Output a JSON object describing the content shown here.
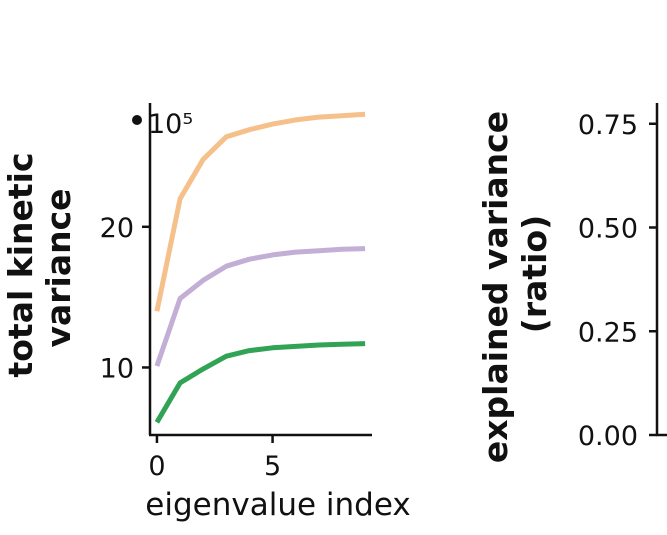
{
  "chart_data": [
    {
      "type": "line",
      "title": "",
      "xlabel": "eigenvalue index",
      "ylabel_lines": [
        "total kinetic",
        "variance"
      ],
      "y_multiplier_label": "10⁵",
      "x": [
        0,
        1,
        2,
        3,
        4,
        5,
        6,
        7,
        8,
        9
      ],
      "xticks": [
        "0",
        "5"
      ],
      "yticks": [
        "10",
        "20"
      ],
      "xlim": [
        -0.3,
        9.3
      ],
      "ylim": [
        5.2,
        28.8
      ],
      "grid": false,
      "series": [
        {
          "color": "#f5c08a",
          "values": [
            14.0,
            22.0,
            24.8,
            26.4,
            26.9,
            27.3,
            27.6,
            27.8,
            27.9,
            28.0
          ]
        },
        {
          "color": "#c3aed6",
          "values": [
            10.1,
            14.9,
            16.2,
            17.2,
            17.7,
            18.0,
            18.2,
            18.3,
            18.4,
            18.45
          ]
        },
        {
          "color": "#31a354",
          "values": [
            6.1,
            8.9,
            9.9,
            10.8,
            11.2,
            11.4,
            11.5,
            11.6,
            11.65,
            11.7
          ]
        }
      ]
    },
    {
      "type": "line",
      "title": "",
      "xlabel": "",
      "ylabel_lines": [
        "explained variance",
        "(ratio)"
      ],
      "yticks": [
        "0.00",
        "0.25",
        "0.50",
        "0.75"
      ],
      "ylim": [
        0.0,
        0.8
      ],
      "grid": false,
      "series": []
    }
  ]
}
